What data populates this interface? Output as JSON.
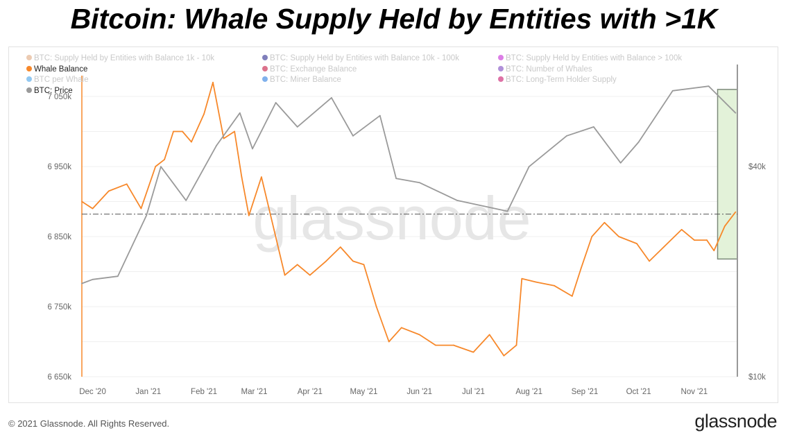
{
  "title": "Bitcoin: Whale Supply Held by Entities with >1K",
  "legend": [
    {
      "label": "BTC: Supply Held by Entities with Balance 1k - 10k",
      "color": "#e0a97f",
      "active": false
    },
    {
      "label": "BTC: Supply Held by Entities with Balance 10k - 100k",
      "color": "#2b2a8e",
      "active": false
    },
    {
      "label": "BTC: Supply Held by Entities with Balance > 100k",
      "color": "#c52ad6",
      "active": false
    },
    {
      "label": "Whale Balance",
      "color": "#f7882a",
      "active": true
    },
    {
      "label": "BTC: Exchange Balance",
      "color": "#c4143f",
      "active": false
    },
    {
      "label": "BTC: Number of Whales",
      "color": "#7c46c0",
      "active": false
    },
    {
      "label": "BTC per Whale",
      "color": "#4aa3e8",
      "active": false
    },
    {
      "label": "BTC: Miner Balance",
      "color": "#2b7de0",
      "active": false
    },
    {
      "label": "BTC: Long-Term Holder Supply",
      "color": "#c8146a",
      "active": false
    },
    {
      "label": "BTC: Price",
      "color": "#9a9a9a",
      "active": true
    }
  ],
  "footer": {
    "copyright": "© 2021 Glassnode. All Rights Reserved.",
    "brand": "glassnode",
    "watermark": "glassnode"
  },
  "chart_data": {
    "type": "line",
    "title": "Bitcoin: Whale Supply Held by Entities with >1K",
    "x_range": [
      "2020-11-25",
      "2021-11-25"
    ],
    "x_ticks": [
      "Dec '20",
      "Jan '21",
      "Feb '21",
      "Mar '21",
      "Apr '21",
      "May '21",
      "Jun '21",
      "Jul '21",
      "Aug '21",
      "Sep '21",
      "Oct '21",
      "Nov '21"
    ],
    "x_tick_dates": [
      "2020-12-01",
      "2021-01-01",
      "2021-02-01",
      "2021-03-01",
      "2021-04-01",
      "2021-05-01",
      "2021-06-01",
      "2021-07-01",
      "2021-08-01",
      "2021-09-01",
      "2021-10-01",
      "2021-11-01"
    ],
    "y_left": {
      "ticks": [
        "6 650k",
        "6 750k",
        "6 850k",
        "6 950k",
        "7 050k"
      ],
      "tick_values": [
        6650,
        6750,
        6850,
        6950,
        7050
      ],
      "range": [
        6650,
        7050
      ],
      "unit": "thousand BTC"
    },
    "y_right": {
      "ticks": [
        "$10k",
        "$40k"
      ],
      "tick_values": [
        10000,
        40000
      ],
      "scale": "log",
      "unit": "USD"
    },
    "grid": true,
    "reference_line": {
      "value": 6882,
      "style": "dash-dot"
    },
    "highlight": {
      "from": "2021-11-14",
      "to": "2021-11-25",
      "y_from": 6818,
      "y_to": 7060,
      "color": "#e3f2d9"
    },
    "series": [
      {
        "name": "Whale Balance",
        "color": "#f7882a",
        "axis": "left",
        "points": [
          [
            "2020-11-25",
            6900
          ],
          [
            "2020-12-01",
            6890
          ],
          [
            "2020-12-10",
            6915
          ],
          [
            "2020-12-20",
            6925
          ],
          [
            "2020-12-28",
            6890
          ],
          [
            "2021-01-05",
            6950
          ],
          [
            "2021-01-10",
            6960
          ],
          [
            "2021-01-15",
            7000
          ],
          [
            "2021-01-20",
            7000
          ],
          [
            "2021-01-25",
            6985
          ],
          [
            "2021-02-01",
            7025
          ],
          [
            "2021-02-06",
            7070
          ],
          [
            "2021-02-12",
            6990
          ],
          [
            "2021-02-18",
            7000
          ],
          [
            "2021-02-22",
            6935
          ],
          [
            "2021-02-26",
            6880
          ],
          [
            "2021-03-05",
            6935
          ],
          [
            "2021-03-12",
            6860
          ],
          [
            "2021-03-18",
            6795
          ],
          [
            "2021-03-25",
            6810
          ],
          [
            "2021-04-01",
            6795
          ],
          [
            "2021-04-10",
            6815
          ],
          [
            "2021-04-18",
            6835
          ],
          [
            "2021-04-25",
            6815
          ],
          [
            "2021-05-01",
            6810
          ],
          [
            "2021-05-08",
            6750
          ],
          [
            "2021-05-15",
            6700
          ],
          [
            "2021-05-22",
            6720
          ],
          [
            "2021-06-01",
            6710
          ],
          [
            "2021-06-10",
            6695
          ],
          [
            "2021-06-20",
            6695
          ],
          [
            "2021-07-01",
            6685
          ],
          [
            "2021-07-10",
            6710
          ],
          [
            "2021-07-18",
            6680
          ],
          [
            "2021-07-25",
            6695
          ],
          [
            "2021-07-28",
            6790
          ],
          [
            "2021-08-05",
            6785
          ],
          [
            "2021-08-15",
            6780
          ],
          [
            "2021-08-25",
            6765
          ],
          [
            "2021-08-30",
            6805
          ],
          [
            "2021-09-05",
            6850
          ],
          [
            "2021-09-12",
            6870
          ],
          [
            "2021-09-20",
            6850
          ],
          [
            "2021-09-30",
            6840
          ],
          [
            "2021-10-07",
            6815
          ],
          [
            "2021-10-15",
            6835
          ],
          [
            "2021-10-25",
            6860
          ],
          [
            "2021-11-01",
            6845
          ],
          [
            "2021-11-08",
            6845
          ],
          [
            "2021-11-12",
            6830
          ],
          [
            "2021-11-18",
            6865
          ],
          [
            "2021-11-24",
            6885
          ]
        ]
      },
      {
        "name": "BTC: Price",
        "color": "#9a9a9a",
        "axis": "right",
        "points": [
          [
            "2020-11-25",
            18500
          ],
          [
            "2020-12-01",
            19000
          ],
          [
            "2020-12-15",
            19400
          ],
          [
            "2020-12-31",
            29000
          ],
          [
            "2021-01-08",
            40000
          ],
          [
            "2021-01-22",
            32000
          ],
          [
            "2021-02-08",
            46000
          ],
          [
            "2021-02-21",
            57000
          ],
          [
            "2021-02-28",
            45000
          ],
          [
            "2021-03-13",
            61000
          ],
          [
            "2021-03-25",
            52000
          ],
          [
            "2021-04-13",
            63000
          ],
          [
            "2021-04-25",
            49000
          ],
          [
            "2021-05-10",
            56000
          ],
          [
            "2021-05-19",
            37000
          ],
          [
            "2021-06-01",
            36000
          ],
          [
            "2021-06-22",
            32000
          ],
          [
            "2021-07-20",
            29800
          ],
          [
            "2021-08-01",
            40000
          ],
          [
            "2021-08-22",
            49000
          ],
          [
            "2021-09-06",
            52000
          ],
          [
            "2021-09-21",
            41000
          ],
          [
            "2021-10-01",
            47000
          ],
          [
            "2021-10-20",
            66000
          ],
          [
            "2021-11-09",
            68000
          ],
          [
            "2021-11-24",
            57000
          ]
        ]
      }
    ]
  }
}
